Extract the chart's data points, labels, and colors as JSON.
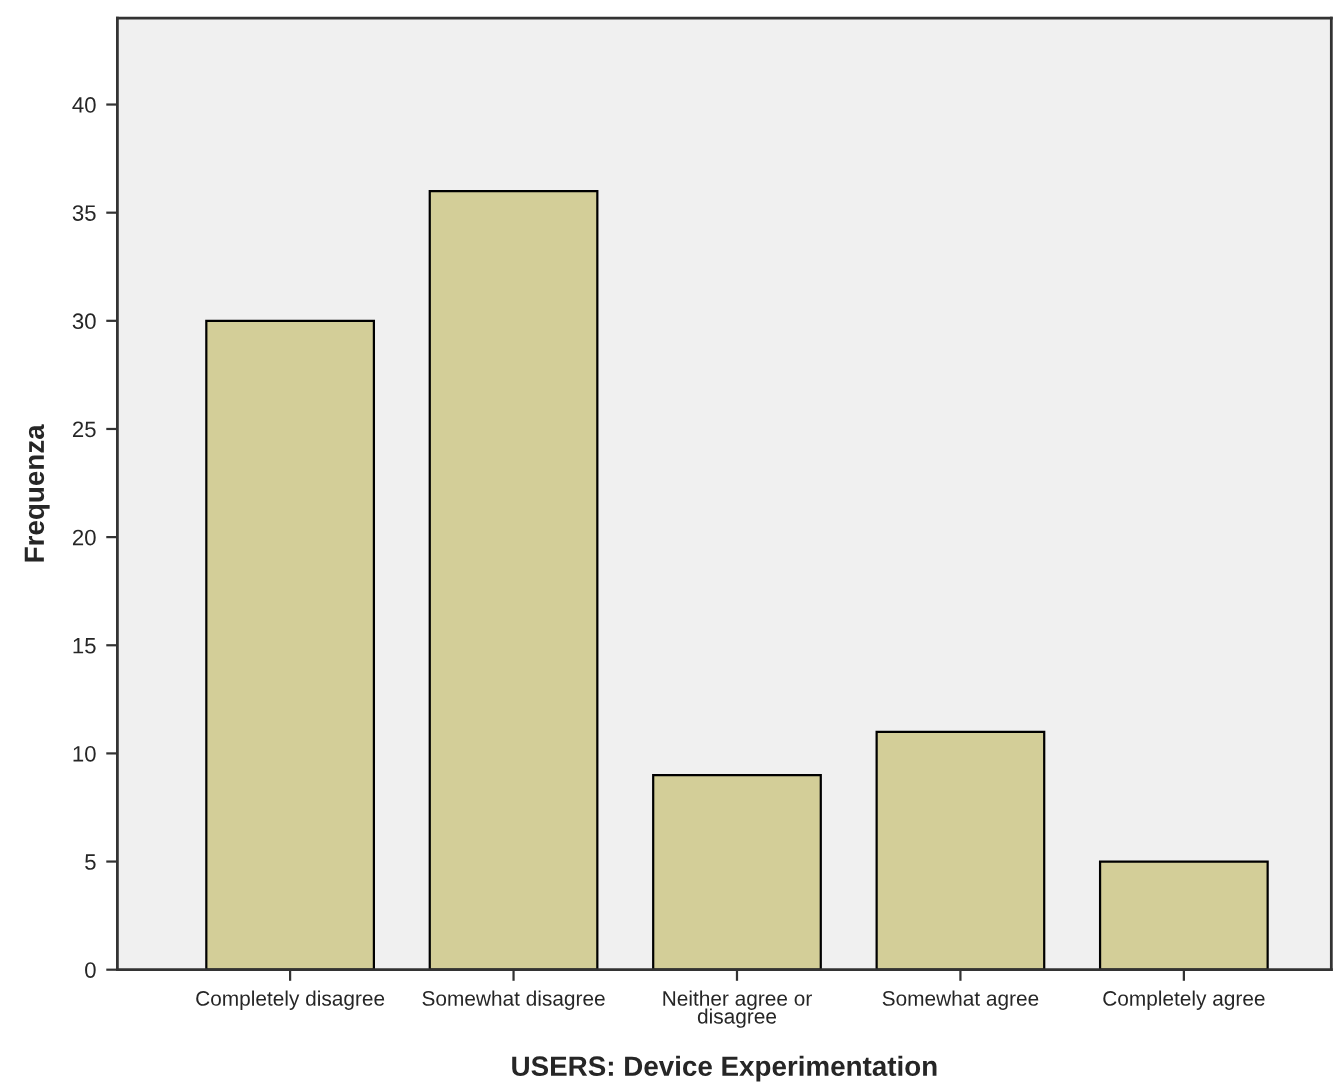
{
  "chart_data": {
    "type": "bar",
    "xlabel": "USERS: Device Experimentation",
    "ylabel": "Frequenza",
    "categories": [
      "Completely disagree",
      "Somewhat disagree",
      "Neither agree or\ndisagree",
      "Somewhat agree",
      "Completely agree"
    ],
    "values": [
      30,
      36,
      9,
      11,
      5
    ],
    "color": "#d3ce98",
    "ylim": [
      0,
      44
    ],
    "yticks": [
      0,
      5,
      10,
      15,
      20,
      25,
      30,
      35,
      40
    ],
    "grid": false,
    "legend": false
  }
}
